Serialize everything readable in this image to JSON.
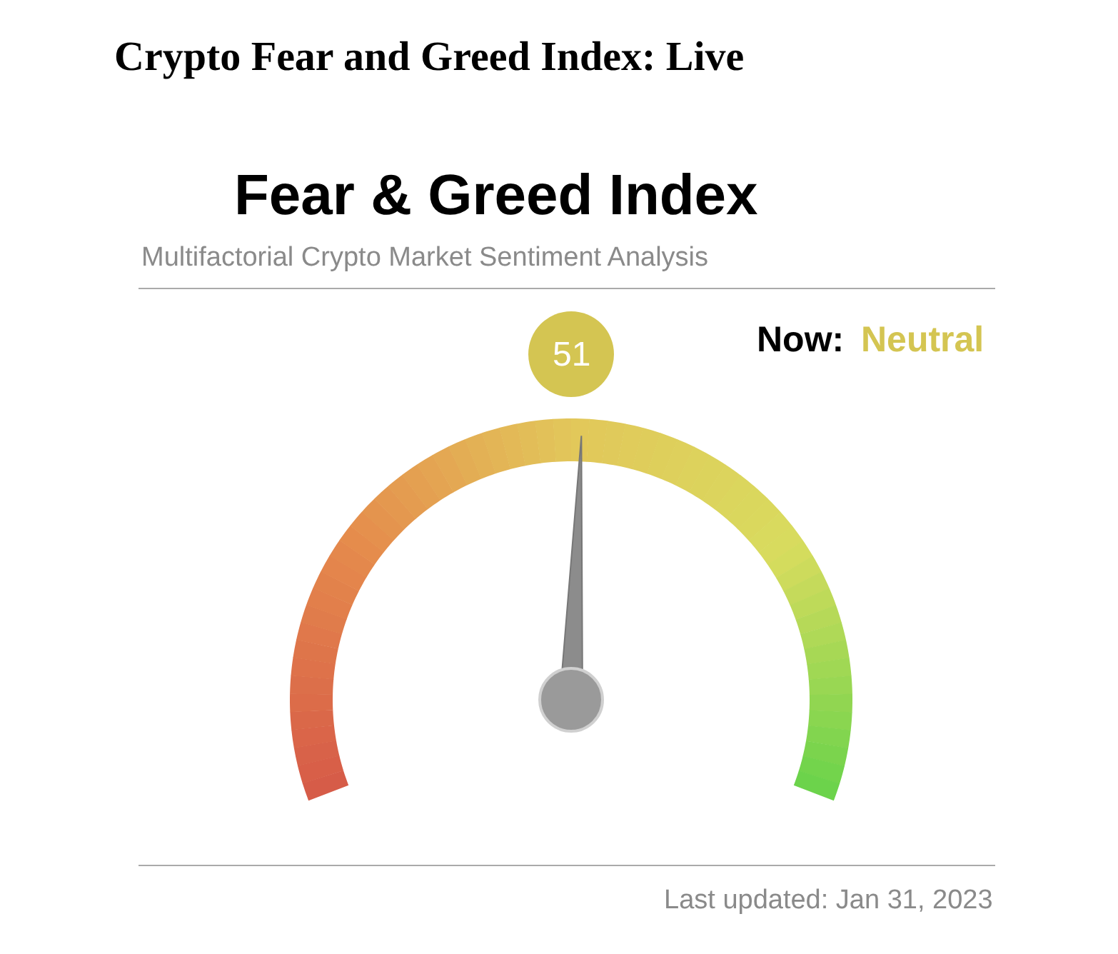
{
  "chart_data": {
    "type": "other",
    "title": "Crypto Fear and Greed Index: Live",
    "subtitle": "Fear & Greed Index",
    "annotations": [
      "Multifactorial Crypto Market Sentiment Analysis",
      "Now:",
      "Neutral",
      "Last updated: Jan 31, 2023"
    ],
    "values": [
      51
    ],
    "color": "#d4c552",
    "data_labels": true
  }
}
